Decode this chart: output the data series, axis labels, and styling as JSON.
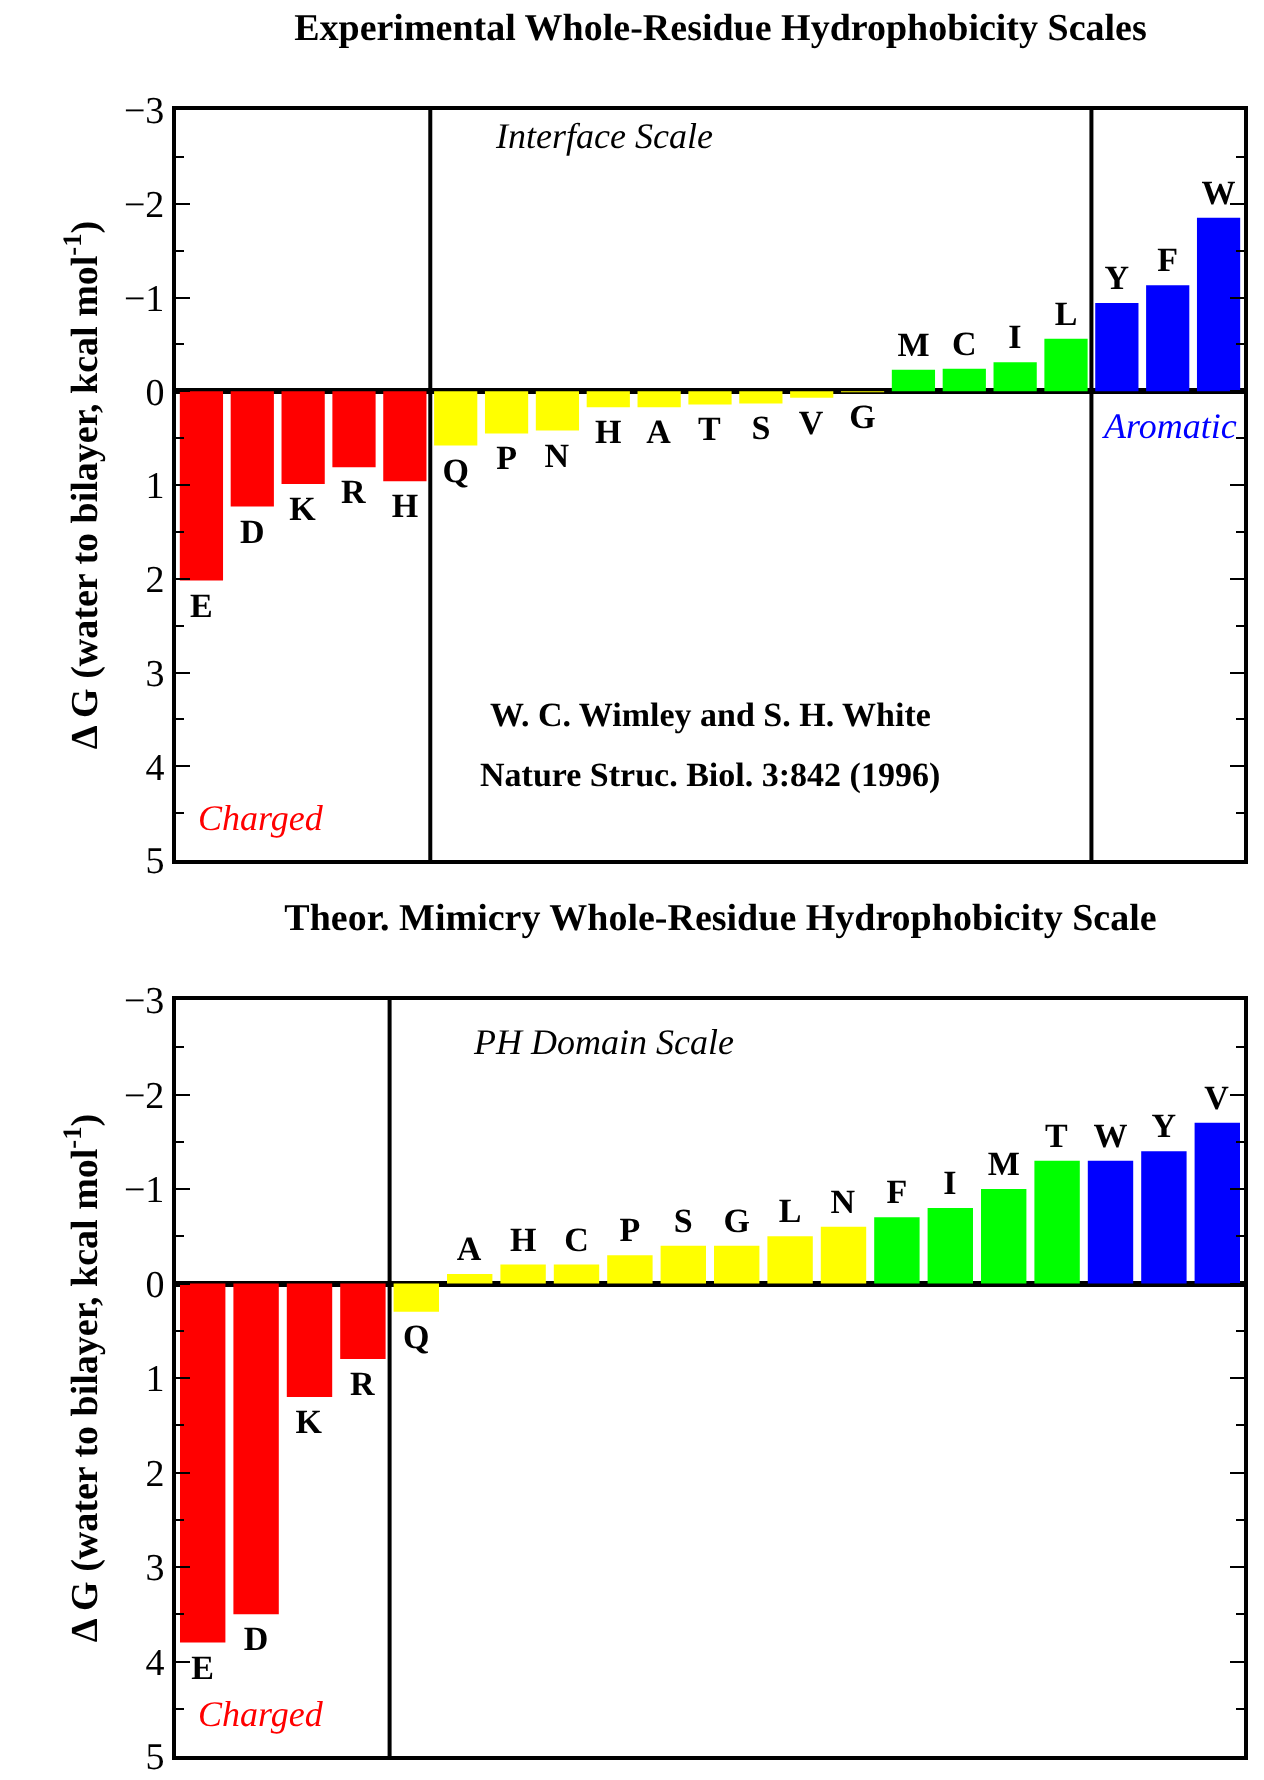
{
  "chart_data": [
    {
      "type": "bar",
      "title": "Experimental Whole-Residue Hydrophobicity Scales",
      "ylabel": "Δ G (water to bilayer, kcal mol$^{-1}$)",
      "categories": [
        "E",
        "D",
        "K",
        "R",
        "H",
        "Q",
        "P",
        "N",
        "H",
        "A",
        "T",
        "S",
        "V",
        "G",
        "M",
        "C",
        "I",
        "L",
        "Y",
        "F",
        "W"
      ],
      "values": [
        2.02,
        1.23,
        0.99,
        0.81,
        0.96,
        0.58,
        0.45,
        0.42,
        0.17,
        0.17,
        0.14,
        0.13,
        0.07,
        0.01,
        -0.23,
        -0.24,
        -0.31,
        -0.56,
        -0.94,
        -1.13,
        -1.85
      ],
      "colors": [
        "#ff0000",
        "#ff0000",
        "#ff0000",
        "#ff0000",
        "#ff0000",
        "#ffff00",
        "#ffff00",
        "#ffff00",
        "#ffff00",
        "#ffff00",
        "#ffff00",
        "#ffff00",
        "#ffff00",
        "#ffff00",
        "#00ff00",
        "#00ff00",
        "#00ff00",
        "#00ff00",
        "#0000ff",
        "#0000ff",
        "#0000ff"
      ],
      "ylim": [
        5,
        -3
      ],
      "yticks": [
        -3,
        -2,
        -1,
        0,
        1,
        2,
        3,
        4,
        5
      ],
      "grid": false,
      "annotations": [
        "Interface Scale",
        "Charged",
        "Aromatic",
        "W. C. Wimley and S. H. White",
        "Nature Struc. Biol. 3:842 (1996)"
      ]
    },
    {
      "type": "bar",
      "title": "Theor. Mimicry Whole-Residue Hydrophobicity Scale",
      "ylabel": "Δ G (water to bilayer, kcal mol$^{-1}$)",
      "categories": [
        "E",
        "D",
        "K",
        "R",
        "Q",
        "A",
        "H",
        "C",
        "P",
        "S",
        "G",
        "L",
        "N",
        "F",
        "I",
        "M",
        "T",
        "W",
        "Y",
        "V"
      ],
      "values": [
        3.8,
        3.5,
        1.2,
        0.8,
        0.3,
        -0.1,
        -0.2,
        -0.2,
        -0.3,
        -0.4,
        -0.4,
        -0.5,
        -0.6,
        -0.7,
        -0.8,
        -1.0,
        -1.3,
        -1.3,
        -1.4,
        -1.7
      ],
      "colors": [
        "#ff0000",
        "#ff0000",
        "#ff0000",
        "#ff0000",
        "#ffff00",
        "#ffff00",
        "#ffff00",
        "#ffff00",
        "#ffff00",
        "#ffff00",
        "#ffff00",
        "#ffff00",
        "#ffff00",
        "#00ff00",
        "#00ff00",
        "#00ff00",
        "#00ff00",
        "#0000ff",
        "#0000ff",
        "#0000ff"
      ],
      "ylim": [
        5,
        -3
      ],
      "yticks": [
        -3,
        -2,
        -1,
        0,
        1,
        2,
        3,
        4,
        5
      ],
      "grid": false,
      "annotations": [
        "PH Domain Scale",
        "Charged"
      ]
    }
  ]
}
